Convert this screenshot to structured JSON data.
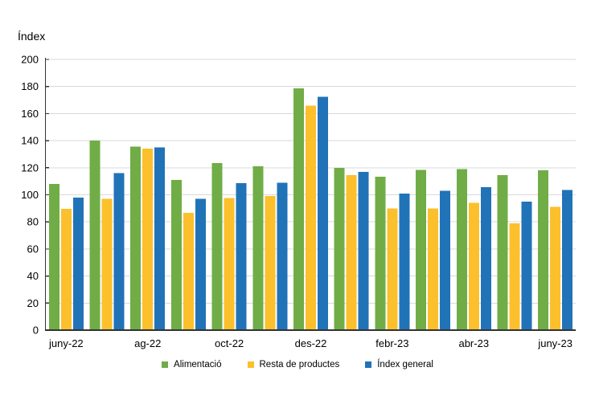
{
  "chart_data": {
    "type": "bar",
    "title": "Índex",
    "categories": [
      "juny-22",
      "",
      "ag-22",
      "",
      "oct-22",
      "",
      "des-22",
      "",
      "febr-23",
      "",
      "abr-23",
      "",
      "juny-23"
    ],
    "series": [
      {
        "name": "Alimentació",
        "color": "#70AD47",
        "values": [
          108,
          140,
          135.5,
          111,
          123.5,
          121,
          178.5,
          120,
          113.5,
          118.5,
          119,
          114.5,
          118
        ]
      },
      {
        "name": "Resta de productes",
        "color": "#FCC02D",
        "values": [
          89.5,
          97,
          134,
          86.5,
          97.5,
          99,
          166,
          114.5,
          90,
          90,
          94,
          79,
          91
        ]
      },
      {
        "name": "Índex general",
        "color": "#2173B8",
        "values": [
          98,
          116,
          135,
          97,
          108.5,
          109,
          172.5,
          117,
          101,
          103,
          105.5,
          95,
          103.5
        ]
      }
    ],
    "ylim": [
      0,
      200
    ],
    "y_ticks": [
      0,
      20,
      40,
      60,
      80,
      100,
      120,
      140,
      160,
      180,
      200
    ],
    "grid": "horizontal",
    "legend_position": "bottom",
    "colors": {
      "gridline": "#D9D9D9",
      "axis_line": "#333333",
      "text": "#000000",
      "background": "#FFFFFF"
    }
  }
}
